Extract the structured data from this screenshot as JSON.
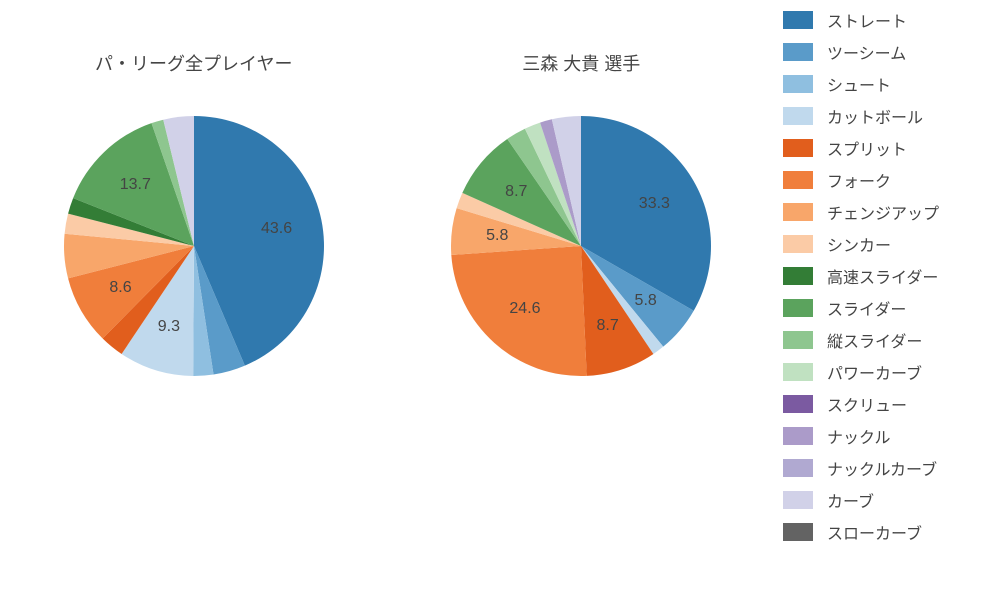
{
  "background_color": "#ffffff",
  "text_color": "#444444",
  "title_fontsize": 18,
  "label_fontsize": 16,
  "legend_fontsize": 16,
  "pie_radius": 130,
  "label_offset": 0.65,
  "charts": [
    {
      "title": "パ・リーグ全プレイヤー",
      "slices": [
        {
          "name": "ストレート",
          "value": 43.6,
          "color": "#3079ae",
          "show_label": true
        },
        {
          "name": "ツーシーム",
          "value": 4.0,
          "color": "#5a9bc9",
          "show_label": false
        },
        {
          "name": "シュート",
          "value": 2.5,
          "color": "#8fbfe0",
          "show_label": false
        },
        {
          "name": "カットボール",
          "value": 9.3,
          "color": "#c0d9ed",
          "show_label": true
        },
        {
          "name": "スプリット",
          "value": 3.0,
          "color": "#e15e1d",
          "show_label": false
        },
        {
          "name": "フォーク",
          "value": 8.6,
          "color": "#f07e3b",
          "show_label": true
        },
        {
          "name": "チェンジアップ",
          "value": 5.5,
          "color": "#f8a66a",
          "show_label": false
        },
        {
          "name": "シンカー",
          "value": 2.5,
          "color": "#fbcba6",
          "show_label": false
        },
        {
          "name": "高速スライダー",
          "value": 2.0,
          "color": "#337d36",
          "show_label": false
        },
        {
          "name": "スライダー",
          "value": 13.7,
          "color": "#5ba35d",
          "show_label": true
        },
        {
          "name": "縦スライダー",
          "value": 1.5,
          "color": "#8ec68f",
          "show_label": false
        },
        {
          "name": "カーブ",
          "value": 3.8,
          "color": "#d1d1e8",
          "show_label": false
        }
      ]
    },
    {
      "title": "三森 大貴  選手",
      "slices": [
        {
          "name": "ストレート",
          "value": 33.3,
          "color": "#3079ae",
          "show_label": true
        },
        {
          "name": "ツーシーム",
          "value": 5.8,
          "color": "#5a9bc9",
          "show_label": true
        },
        {
          "name": "カットボール",
          "value": 1.5,
          "color": "#c0d9ed",
          "show_label": false
        },
        {
          "name": "スプリット",
          "value": 8.7,
          "color": "#e15e1d",
          "show_label": true
        },
        {
          "name": "フォーク",
          "value": 24.6,
          "color": "#f07e3b",
          "show_label": true
        },
        {
          "name": "チェンジアップ",
          "value": 5.8,
          "color": "#f8a66a",
          "show_label": true
        },
        {
          "name": "シンカー",
          "value": 2.0,
          "color": "#fbcba6",
          "show_label": false
        },
        {
          "name": "スライダー",
          "value": 8.7,
          "color": "#5ba35d",
          "show_label": true
        },
        {
          "name": "縦スライダー",
          "value": 2.5,
          "color": "#8ec68f",
          "show_label": false
        },
        {
          "name": "パワーカーブ",
          "value": 2.0,
          "color": "#c0e1c1",
          "show_label": false
        },
        {
          "name": "ナックル",
          "value": 1.5,
          "color": "#ab9bc9",
          "show_label": false
        },
        {
          "name": "カーブ",
          "value": 3.6,
          "color": "#d1d1e8",
          "show_label": false
        }
      ]
    }
  ],
  "legend": [
    {
      "label": "ストレート",
      "color": "#3079ae"
    },
    {
      "label": "ツーシーム",
      "color": "#5a9bc9"
    },
    {
      "label": "シュート",
      "color": "#8fbfe0"
    },
    {
      "label": "カットボール",
      "color": "#c0d9ed"
    },
    {
      "label": "スプリット",
      "color": "#e15e1d"
    },
    {
      "label": "フォーク",
      "color": "#f07e3b"
    },
    {
      "label": "チェンジアップ",
      "color": "#f8a66a"
    },
    {
      "label": "シンカー",
      "color": "#fbcba6"
    },
    {
      "label": "高速スライダー",
      "color": "#337d36"
    },
    {
      "label": "スライダー",
      "color": "#5ba35d"
    },
    {
      "label": "縦スライダー",
      "color": "#8ec68f"
    },
    {
      "label": "パワーカーブ",
      "color": "#c0e1c1"
    },
    {
      "label": "スクリュー",
      "color": "#7b5aa1"
    },
    {
      "label": "ナックル",
      "color": "#ab9bc9"
    },
    {
      "label": "ナックルカーブ",
      "color": "#b0a9d1"
    },
    {
      "label": "カーブ",
      "color": "#d1d1e8"
    },
    {
      "label": "スローカーブ",
      "color": "#636363"
    }
  ]
}
